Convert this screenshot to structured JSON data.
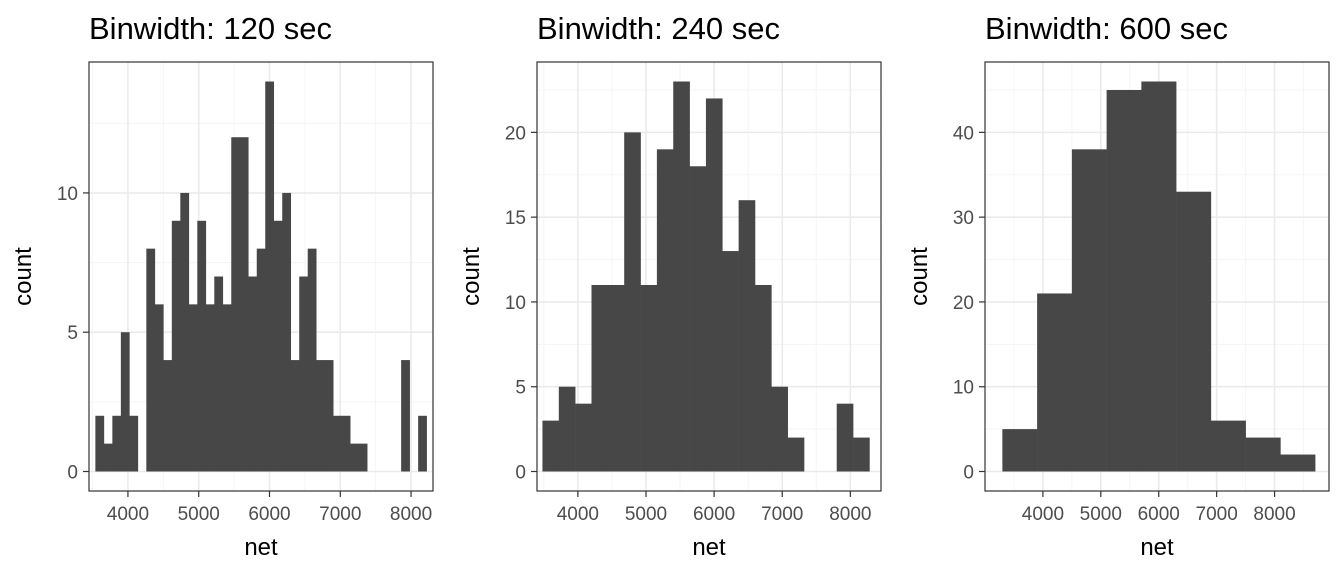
{
  "style": {
    "bar_color": "#474747",
    "grid_major": "#ebebeb",
    "grid_minor": "#f5f5f5",
    "border": "#333333",
    "tick_text": "#4d4d4d"
  },
  "chart_data": [
    {
      "type": "bar",
      "title": "Binwidth: 120 sec",
      "xlabel": "net",
      "ylabel": "count",
      "binwidth": 120,
      "xlim": [
        3450,
        8310
      ],
      "ylim": [
        -0.7,
        14.7
      ],
      "xticks": [
        4000,
        5000,
        6000,
        7000,
        8000
      ],
      "yticks": [
        0,
        5,
        10
      ],
      "bins": [
        {
          "x": 3600,
          "count": 2
        },
        {
          "x": 3720,
          "count": 1
        },
        {
          "x": 3840,
          "count": 2
        },
        {
          "x": 3960,
          "count": 5
        },
        {
          "x": 4080,
          "count": 2
        },
        {
          "x": 4200,
          "count": 0
        },
        {
          "x": 4320,
          "count": 8
        },
        {
          "x": 4440,
          "count": 6
        },
        {
          "x": 4560,
          "count": 4
        },
        {
          "x": 4680,
          "count": 9
        },
        {
          "x": 4800,
          "count": 10
        },
        {
          "x": 4920,
          "count": 6
        },
        {
          "x": 5040,
          "count": 9
        },
        {
          "x": 5160,
          "count": 6
        },
        {
          "x": 5280,
          "count": 7
        },
        {
          "x": 5400,
          "count": 6
        },
        {
          "x": 5520,
          "count": 12
        },
        {
          "x": 5640,
          "count": 12
        },
        {
          "x": 5760,
          "count": 7
        },
        {
          "x": 5880,
          "count": 8
        },
        {
          "x": 6000,
          "count": 14
        },
        {
          "x": 6120,
          "count": 9
        },
        {
          "x": 6240,
          "count": 10
        },
        {
          "x": 6360,
          "count": 4
        },
        {
          "x": 6480,
          "count": 7
        },
        {
          "x": 6600,
          "count": 8
        },
        {
          "x": 6720,
          "count": 4
        },
        {
          "x": 6840,
          "count": 4
        },
        {
          "x": 6960,
          "count": 2
        },
        {
          "x": 7080,
          "count": 2
        },
        {
          "x": 7200,
          "count": 1
        },
        {
          "x": 7320,
          "count": 1
        },
        {
          "x": 7440,
          "count": 0
        },
        {
          "x": 7560,
          "count": 0
        },
        {
          "x": 7680,
          "count": 0
        },
        {
          "x": 7800,
          "count": 0
        },
        {
          "x": 7920,
          "count": 4
        },
        {
          "x": 8040,
          "count": 0
        },
        {
          "x": 8160,
          "count": 2
        }
      ]
    },
    {
      "type": "bar",
      "title": "Binwidth: 240 sec",
      "xlabel": "net",
      "ylabel": "count",
      "binwidth": 240,
      "xlim": [
        3400,
        8450
      ],
      "ylim": [
        -1.15,
        24.15
      ],
      "xticks": [
        4000,
        5000,
        6000,
        7000,
        8000
      ],
      "yticks": [
        0,
        5,
        10,
        15,
        20
      ],
      "bins": [
        {
          "x": 3600,
          "count": 3
        },
        {
          "x": 3840,
          "count": 5
        },
        {
          "x": 4080,
          "count": 4
        },
        {
          "x": 4320,
          "count": 11
        },
        {
          "x": 4560,
          "count": 11
        },
        {
          "x": 4800,
          "count": 20
        },
        {
          "x": 5040,
          "count": 11
        },
        {
          "x": 5280,
          "count": 19
        },
        {
          "x": 5520,
          "count": 23
        },
        {
          "x": 5760,
          "count": 18
        },
        {
          "x": 6000,
          "count": 22
        },
        {
          "x": 6240,
          "count": 13
        },
        {
          "x": 6480,
          "count": 16
        },
        {
          "x": 6720,
          "count": 11
        },
        {
          "x": 6960,
          "count": 5
        },
        {
          "x": 7200,
          "count": 2
        },
        {
          "x": 7440,
          "count": 0
        },
        {
          "x": 7680,
          "count": 0
        },
        {
          "x": 7920,
          "count": 4
        },
        {
          "x": 8160,
          "count": 2
        }
      ]
    },
    {
      "type": "bar",
      "title": "Binwidth: 600 sec",
      "xlabel": "net",
      "ylabel": "count",
      "binwidth": 600,
      "xlim": [
        3000,
        8940
      ],
      "ylim": [
        -2.3,
        48.3
      ],
      "xticks": [
        4000,
        5000,
        6000,
        7000,
        8000
      ],
      "yticks": [
        0,
        10,
        20,
        30,
        40
      ],
      "bins": [
        {
          "x": 3600,
          "count": 5
        },
        {
          "x": 4200,
          "count": 21
        },
        {
          "x": 4800,
          "count": 38
        },
        {
          "x": 5400,
          "count": 45
        },
        {
          "x": 6000,
          "count": 46
        },
        {
          "x": 6600,
          "count": 33
        },
        {
          "x": 7200,
          "count": 6
        },
        {
          "x": 7800,
          "count": 4
        },
        {
          "x": 8400,
          "count": 2
        }
      ]
    }
  ]
}
